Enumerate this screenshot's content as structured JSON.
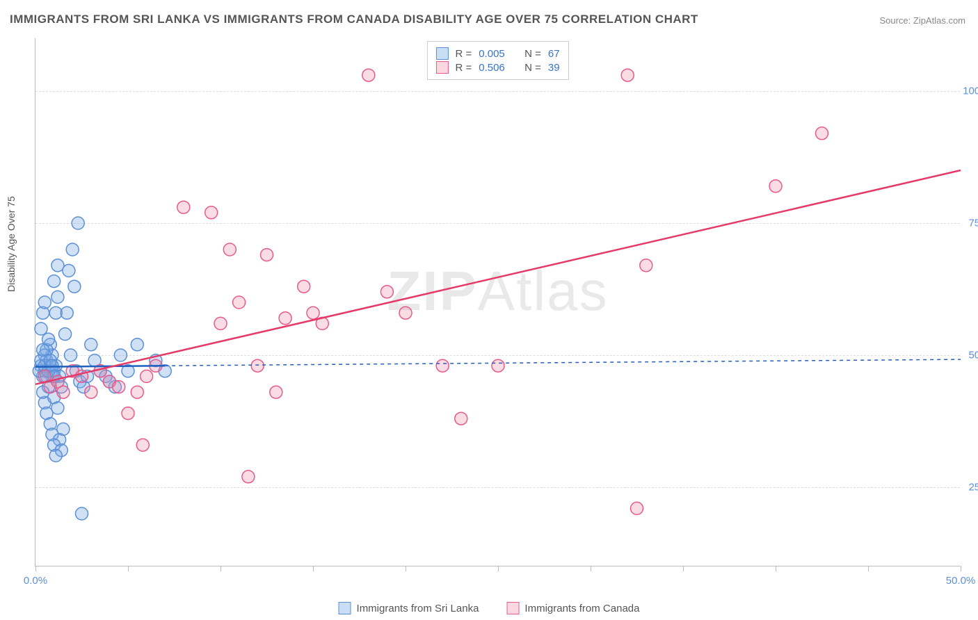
{
  "title": "IMMIGRANTS FROM SRI LANKA VS IMMIGRANTS FROM CANADA DISABILITY AGE OVER 75 CORRELATION CHART",
  "source": "Source: ZipAtlas.com",
  "ylabel": "Disability Age Over 75",
  "watermark_bold": "ZIP",
  "watermark_thin": "Atlas",
  "chart": {
    "type": "scatter",
    "xlim": [
      0,
      50
    ],
    "ylim": [
      10,
      110
    ],
    "xticks": [
      0,
      25,
      50
    ],
    "xtick_labels": [
      "0.0%",
      "",
      "50.0%"
    ],
    "yticks": [
      25,
      50,
      75,
      100
    ],
    "ytick_labels": [
      "25.0%",
      "50.0%",
      "75.0%",
      "100.0%"
    ],
    "xtick_minor_count": 5,
    "background_color": "#ffffff",
    "grid_color": "#dddddd",
    "axis_color": "#bbbbbb",
    "tick_label_color": "#5b8fd6",
    "marker_radius": 9,
    "marker_stroke_width": 1.5,
    "trend_line_width": 2.5
  },
  "series": [
    {
      "name": "Immigrants from Sri Lanka",
      "label": "Immigrants from Sri Lanka",
      "color_fill": "rgba(120,170,230,0.35)",
      "color_stroke": "#5b8fd6",
      "trend_color": "#1f5fbf",
      "trend_dash": "none",
      "R": "0.005",
      "N": "67",
      "trend": {
        "x1": 0,
        "y1": 47.8,
        "x2": 7,
        "y2": 48.0
      },
      "trend_ext": {
        "x1": 7,
        "y1": 48.0,
        "x2": 50,
        "y2": 49.2,
        "dash": "5,5"
      },
      "points": [
        [
          0.3,
          48
        ],
        [
          0.5,
          47
        ],
        [
          0.8,
          52
        ],
        [
          0.4,
          46
        ],
        [
          0.6,
          49
        ],
        [
          1.0,
          47
        ],
        [
          0.9,
          50
        ],
        [
          1.2,
          61
        ],
        [
          1.1,
          58
        ],
        [
          0.7,
          44
        ],
        [
          0.5,
          41
        ],
        [
          0.6,
          39
        ],
        [
          0.8,
          37
        ],
        [
          0.9,
          35
        ],
        [
          1.3,
          34
        ],
        [
          1.0,
          33
        ],
        [
          1.4,
          32
        ],
        [
          1.1,
          31
        ],
        [
          1.5,
          36
        ],
        [
          0.4,
          43
        ],
        [
          1.8,
          66
        ],
        [
          2.0,
          70
        ],
        [
          2.3,
          75
        ],
        [
          2.1,
          63
        ],
        [
          1.7,
          58
        ],
        [
          1.6,
          54
        ],
        [
          1.9,
          50
        ],
        [
          2.2,
          47
        ],
        [
          2.4,
          45
        ],
        [
          2.6,
          44
        ],
        [
          2.8,
          46
        ],
        [
          3.0,
          52
        ],
        [
          3.2,
          49
        ],
        [
          3.5,
          47
        ],
        [
          3.8,
          46
        ],
        [
          4.0,
          45
        ],
        [
          4.3,
          44
        ],
        [
          4.6,
          50
        ],
        [
          5.0,
          47
        ],
        [
          5.5,
          52
        ],
        [
          6.5,
          49
        ],
        [
          7.0,
          47
        ],
        [
          0.3,
          55
        ],
        [
          0.4,
          58
        ],
        [
          0.5,
          60
        ],
        [
          1.0,
          42
        ],
        [
          1.2,
          40
        ],
        [
          0.8,
          48
        ],
        [
          0.9,
          46
        ],
        [
          0.6,
          51
        ],
        [
          0.7,
          53
        ],
        [
          1.1,
          48
        ],
        [
          1.3,
          46
        ],
        [
          1.4,
          44
        ],
        [
          0.5,
          50
        ],
        [
          2.5,
          20
        ],
        [
          1.0,
          64
        ],
        [
          1.2,
          67
        ],
        [
          0.2,
          47
        ],
        [
          0.3,
          49
        ],
        [
          0.4,
          51
        ],
        [
          0.5,
          48
        ],
        [
          0.6,
          46
        ],
        [
          0.7,
          47
        ],
        [
          0.8,
          49
        ],
        [
          0.9,
          48
        ],
        [
          1.0,
          46
        ]
      ]
    },
    {
      "name": "Immigrants from Canada",
      "label": "Immigrants from Canada",
      "color_fill": "rgba(240,140,170,0.3)",
      "color_stroke": "#e85a8a",
      "trend_color": "#e63968",
      "trend_dash": "none",
      "R": "0.506",
      "N": "39",
      "trend": {
        "x1": 0,
        "y1": 44.5,
        "x2": 50,
        "y2": 85.0
      },
      "points": [
        [
          0.5,
          46
        ],
        [
          0.8,
          44
        ],
        [
          1.2,
          45
        ],
        [
          1.5,
          43
        ],
        [
          2.0,
          47
        ],
        [
          2.5,
          46
        ],
        [
          3.0,
          43
        ],
        [
          3.5,
          47
        ],
        [
          4.0,
          45
        ],
        [
          4.5,
          44
        ],
        [
          5.0,
          39
        ],
        [
          5.5,
          43
        ],
        [
          6.0,
          46
        ],
        [
          6.5,
          48
        ],
        [
          5.8,
          33
        ],
        [
          8.0,
          78
        ],
        [
          9.5,
          77
        ],
        [
          10.0,
          56
        ],
        [
          10.5,
          70
        ],
        [
          11.0,
          60
        ],
        [
          12.0,
          48
        ],
        [
          12.5,
          69
        ],
        [
          13.0,
          43
        ],
        [
          13.5,
          57
        ],
        [
          14.5,
          63
        ],
        [
          15.0,
          58
        ],
        [
          15.5,
          56
        ],
        [
          11.5,
          27
        ],
        [
          19.0,
          62
        ],
        [
          20.0,
          58
        ],
        [
          22.0,
          48
        ],
        [
          23.0,
          38
        ],
        [
          25.0,
          48
        ],
        [
          32.0,
          103
        ],
        [
          33.0,
          67
        ],
        [
          32.5,
          21
        ],
        [
          40.0,
          82
        ],
        [
          42.5,
          92
        ],
        [
          18.0,
          103
        ]
      ]
    }
  ],
  "legend_top": {
    "rows": [
      {
        "swatch": "blue",
        "r_label": "R =",
        "r_val": "0.005",
        "n_label": "N =",
        "n_val": "67"
      },
      {
        "swatch": "pink",
        "r_label": "R =",
        "r_val": "0.506",
        "n_label": "N =",
        "n_val": "39"
      }
    ]
  }
}
